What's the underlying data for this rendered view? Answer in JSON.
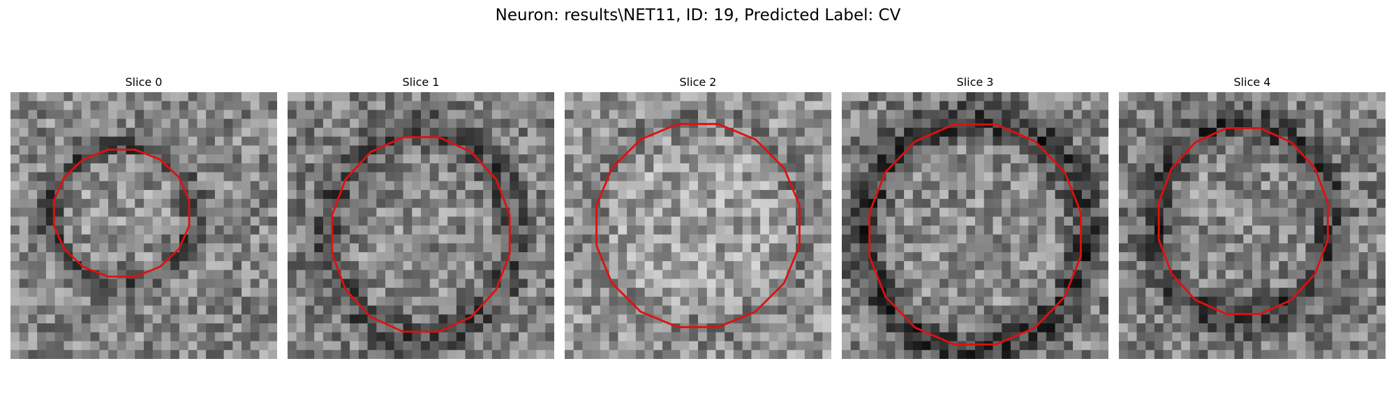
{
  "figure": {
    "title": "Neuron: results\\NET11, ID: 19, Predicted Label: CV"
  },
  "panels": [
    {
      "title": "Slice 0"
    },
    {
      "title": "Slice 1"
    },
    {
      "title": "Slice 2"
    },
    {
      "title": "Slice 3"
    },
    {
      "title": "Slice 4"
    }
  ],
  "outline_color": "#e01010"
}
